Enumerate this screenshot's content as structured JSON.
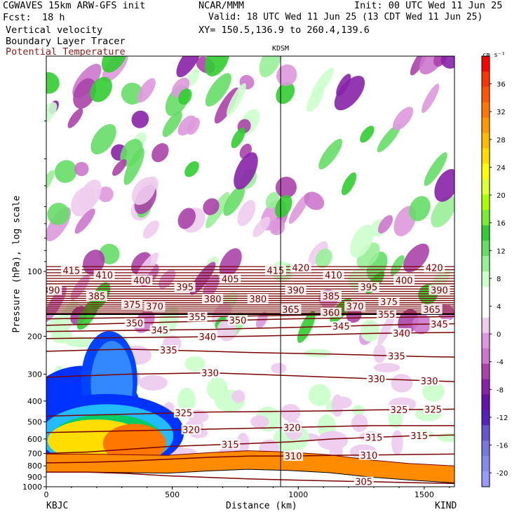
{
  "header": {
    "model": "CGWAVES 15km ARW-GFS init",
    "fcst_label": "Fcst:",
    "fcst_value": "18 h",
    "field1": "Vertical velocity",
    "field2": "Boundary Layer Tracer",
    "field3": "Potential Temperature",
    "org": "NCAR/MMM",
    "init": "Init: 00 UTC Wed 11 Jun 25",
    "valid": "Valid: 18 UTC Wed 11 Jun 25 (13 CDT Wed 11 Jun 25)",
    "xy": "XY= 150.5,136.9 to 260.4,139.6",
    "field3_color": "#8b1a1a"
  },
  "chart_data": {
    "type": "heatmap",
    "title": "",
    "xlabel": "Distance (km)",
    "ylabel": "Pressure (hPa), log scale",
    "x_range": [
      0,
      1620
    ],
    "y_range_hPa": [
      1000,
      10
    ],
    "y_scale": "log",
    "x_ticks": [
      "0",
      "500",
      "1000",
      "1500"
    ],
    "x_tick_values": [
      0,
      500,
      1000,
      1500
    ],
    "y_ticks": [
      "100",
      "200",
      "300",
      "400",
      "500",
      "600",
      "700",
      "800",
      "900",
      "1000"
    ],
    "y_tick_values": [
      100,
      200,
      300,
      400,
      500,
      600,
      700,
      800,
      900,
      1000
    ],
    "endpoint_left": "KBJC",
    "endpoint_right": "KIND",
    "station_marker": {
      "label": "KDSM",
      "x_km": 930
    },
    "colorbar": {
      "unit": "cm s⁻¹",
      "tick_labels": [
        "36",
        "32",
        "28",
        "24",
        "20",
        "16",
        "12",
        "8",
        "4",
        "0",
        "-4",
        "-8",
        "-12",
        "-16",
        "-20"
      ],
      "tick_values": [
        36,
        32,
        28,
        24,
        20,
        16,
        12,
        8,
        4,
        0,
        -4,
        -8,
        -12,
        -16,
        -20
      ],
      "colors": [
        "#ff0000",
        "#ff3300",
        "#ff5500",
        "#ff7700",
        "#ff9900",
        "#ffbb00",
        "#ffdd00",
        "#ffff00",
        "#ddff33",
        "#aaff00",
        "#77ee33",
        "#33cc33",
        "#66dd66",
        "#99ee99",
        "#ccffcc",
        "#ffffff",
        "#ffffff",
        "#eeccee",
        "#dd99dd",
        "#cc77cc",
        "#aa44aa",
        "#8822aa",
        "#6611aa",
        "#5522bb",
        "#6655cc",
        "#7777dd",
        "#8888ee",
        "#9999ff"
      ]
    },
    "theta_contours": [
      {
        "value": 305,
        "label": "305",
        "p": [
          855,
          855,
          868,
          890,
          905,
          920,
          930,
          940,
          948,
          958,
          966
        ],
        "labels_at_km": [
          1260
        ]
      },
      {
        "value": 310,
        "label": "310",
        "p": [
          775,
          770,
          760,
          745,
          730,
          720,
          720,
          715,
          712,
          708,
          705
        ],
        "labels_at_km": [
          980,
          1280
        ]
      },
      {
        "value": 315,
        "label": "315",
        "p": [
          700,
          690,
          670,
          650,
          640,
          630,
          618,
          600,
          590,
          580,
          575
        ],
        "labels_at_km": [
          730,
          1300,
          1480
        ]
      },
      {
        "value": 320,
        "label": "320",
        "p": [
          560,
          555,
          550,
          545,
          540,
          535,
          530,
          525,
          520,
          520,
          520
        ],
        "labels_at_km": [
          575,
          975
        ]
      },
      {
        "value": 325,
        "label": "325",
        "p": [
          470,
          465,
          460,
          455,
          450,
          448,
          446,
          444,
          440,
          438,
          436
        ],
        "labels_at_km": [
          545,
          1400,
          1535
        ]
      },
      {
        "value": 330,
        "label": "330",
        "p": [
          310,
          305,
          300,
          298,
          296,
          300,
          305,
          310,
          315,
          320,
          325
        ],
        "labels_at_km": [
          650,
          1310,
          1520
        ]
      },
      {
        "value": 335,
        "label": "335",
        "p": [
          235,
          232,
          230,
          232,
          235,
          238,
          240,
          242,
          245,
          248,
          250
        ],
        "labels_at_km": [
          485,
          1390
        ]
      },
      {
        "value": 340,
        "label": "340",
        "p": [
          205,
          204,
          203,
          202,
          201,
          200,
          198,
          196,
          194,
          193,
          192
        ],
        "labels_at_km": [
          640,
          1410
        ]
      },
      {
        "value": 345,
        "label": "345",
        "p": [
          190,
          189,
          188,
          187,
          186,
          184,
          182,
          180,
          178,
          176,
          175
        ],
        "labels_at_km": [
          450,
          1170,
          1560
        ]
      },
      {
        "value": 350,
        "label": "350",
        "p": [
          178,
          176,
          174,
          172,
          170,
          168,
          166,
          165,
          164,
          163,
          162
        ],
        "labels_at_km": [
          350,
          760
        ]
      },
      {
        "value": 355,
        "label": "355",
        "p": [
          166,
          165,
          164,
          163,
          162,
          161,
          160,
          159,
          158,
          158,
          158
        ],
        "labels_at_km": [
          600,
          1350
        ]
      }
    ],
    "theta_upper_labels": [
      {
        "label": "360",
        "x_km": 1130,
        "p": 155
      },
      {
        "label": "365",
        "x_km": 970,
        "p": 150
      },
      {
        "label": "365",
        "x_km": 1530,
        "p": 150
      },
      {
        "label": "370",
        "x_km": 430,
        "p": 145
      },
      {
        "label": "370",
        "x_km": 1225,
        "p": 145
      },
      {
        "label": "375",
        "x_km": 340,
        "p": 142
      },
      {
        "label": "375",
        "x_km": 1360,
        "p": 138
      },
      {
        "label": "380",
        "x_km": 660,
        "p": 134
      },
      {
        "label": "380",
        "x_km": 840,
        "p": 134
      },
      {
        "label": "385",
        "x_km": 200,
        "p": 130
      },
      {
        "label": "385",
        "x_km": 1130,
        "p": 130
      },
      {
        "label": "390",
        "x_km": 20,
        "p": 122
      },
      {
        "label": "390",
        "x_km": 990,
        "p": 122
      },
      {
        "label": "390",
        "x_km": 1560,
        "p": 122
      },
      {
        "label": "395",
        "x_km": 550,
        "p": 118
      },
      {
        "label": "395",
        "x_km": 1280,
        "p": 118
      },
      {
        "label": "400",
        "x_km": 380,
        "p": 110
      },
      {
        "label": "400",
        "x_km": 1420,
        "p": 110
      },
      {
        "label": "405",
        "x_km": 730,
        "p": 108
      },
      {
        "label": "410",
        "x_km": 230,
        "p": 104
      },
      {
        "label": "410",
        "x_km": 1140,
        "p": 104
      },
      {
        "label": "415",
        "x_km": 100,
        "p": 99
      },
      {
        "label": "415",
        "x_km": 910,
        "p": 99
      },
      {
        "label": "420",
        "x_km": 1010,
        "p": 96
      },
      {
        "label": "420",
        "x_km": 1540,
        "p": 96
      }
    ],
    "terrain_top_hPa": [
      855,
      855,
      860,
      865,
      845,
      830,
      840,
      860,
      900,
      930,
      960
    ],
    "terrain_x_km": [
      0,
      160,
      320,
      480,
      640,
      800,
      960,
      1120,
      1280,
      1440,
      1620
    ]
  }
}
